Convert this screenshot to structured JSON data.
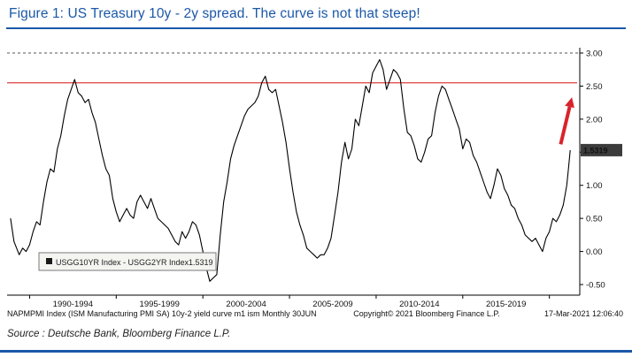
{
  "page": {
    "title": "Figure 1: US Treasury 10y - 2y spread. The curve is not that steep!",
    "source": "Source : Deutsche Bank, Bloomberg Finance L.P.",
    "accent_color": "#1b58a8"
  },
  "chart_data": {
    "type": "line",
    "title": "US Treasury 10y - 2y spread",
    "xlim": [
      1988.7,
      2021.6
    ],
    "ylim": [
      -0.5,
      3.0
    ],
    "y_ticks": [
      3.0,
      2.5,
      2.0,
      1.5,
      1.0,
      0.5,
      0.0,
      -0.5
    ],
    "y_tick_labels": [
      "3.00",
      "2.50",
      "2.00",
      "1.50",
      "1.00",
      "0.50",
      "0.00",
      "-0.50"
    ],
    "x_boundaries": [
      1990,
      1995,
      2000,
      2005,
      2010,
      2015,
      2020
    ],
    "x_groups": [
      {
        "label": "1990-1994",
        "center": 1992.5
      },
      {
        "label": "1995-1999",
        "center": 1997.5
      },
      {
        "label": "2000-2004",
        "center": 2002.5
      },
      {
        "label": "2005-2009",
        "center": 2007.5
      },
      {
        "label": "2010-2014",
        "center": 2012.5
      },
      {
        "label": "2015-2019",
        "center": 2017.5
      }
    ],
    "grid": "top-dashed-only",
    "legend_position": "bottom-left-inside",
    "legend": {
      "marker_color": "#1a1a1a",
      "label": "USGG10YR Index - USGG2YR Index",
      "value": "1.5319"
    },
    "threshold_line": {
      "value": 2.55,
      "color": "#e05252"
    },
    "top_gridline": {
      "value": 3.0,
      "style": "dashed",
      "color": "#555555"
    },
    "arrow_annotation": {
      "from": [
        2020.65,
        1.62
      ],
      "to": [
        2021.3,
        2.33
      ],
      "color": "#d9232a"
    },
    "last_value": 1.5319,
    "last_value_label": "1.5319",
    "badge_color": "#3c3c3c",
    "series": [
      {
        "name": "USGG10YR Index - USGG2YR Index",
        "color": "#000000",
        "points": [
          [
            1988.9,
            0.5
          ],
          [
            1989.1,
            0.15
          ],
          [
            1989.4,
            -0.05
          ],
          [
            1989.6,
            0.05
          ],
          [
            1989.8,
            0.0
          ],
          [
            1990.0,
            0.1
          ],
          [
            1990.2,
            0.3
          ],
          [
            1990.4,
            0.45
          ],
          [
            1990.6,
            0.4
          ],
          [
            1990.8,
            0.75
          ],
          [
            1991.0,
            1.05
          ],
          [
            1991.2,
            1.25
          ],
          [
            1991.4,
            1.2
          ],
          [
            1991.6,
            1.55
          ],
          [
            1991.8,
            1.75
          ],
          [
            1992.0,
            2.05
          ],
          [
            1992.2,
            2.3
          ],
          [
            1992.4,
            2.45
          ],
          [
            1992.6,
            2.6
          ],
          [
            1992.8,
            2.4
          ],
          [
            1993.0,
            2.35
          ],
          [
            1993.2,
            2.25
          ],
          [
            1993.4,
            2.3
          ],
          [
            1993.6,
            2.1
          ],
          [
            1993.8,
            1.95
          ],
          [
            1994.0,
            1.7
          ],
          [
            1994.2,
            1.45
          ],
          [
            1994.4,
            1.25
          ],
          [
            1994.6,
            1.15
          ],
          [
            1994.8,
            0.8
          ],
          [
            1995.0,
            0.6
          ],
          [
            1995.2,
            0.45
          ],
          [
            1995.4,
            0.55
          ],
          [
            1995.6,
            0.65
          ],
          [
            1995.8,
            0.55
          ],
          [
            1996.0,
            0.5
          ],
          [
            1996.2,
            0.75
          ],
          [
            1996.4,
            0.85
          ],
          [
            1996.6,
            0.75
          ],
          [
            1996.8,
            0.65
          ],
          [
            1997.0,
            0.8
          ],
          [
            1997.2,
            0.65
          ],
          [
            1997.4,
            0.5
          ],
          [
            1997.6,
            0.45
          ],
          [
            1997.8,
            0.4
          ],
          [
            1998.0,
            0.35
          ],
          [
            1998.2,
            0.25
          ],
          [
            1998.4,
            0.15
          ],
          [
            1998.6,
            0.1
          ],
          [
            1998.8,
            0.3
          ],
          [
            1999.0,
            0.2
          ],
          [
            1999.2,
            0.3
          ],
          [
            1999.4,
            0.45
          ],
          [
            1999.6,
            0.4
          ],
          [
            1999.8,
            0.25
          ],
          [
            2000.0,
            0.0
          ],
          [
            2000.2,
            -0.25
          ],
          [
            2000.4,
            -0.45
          ],
          [
            2000.6,
            -0.4
          ],
          [
            2000.8,
            -0.35
          ],
          [
            2001.0,
            0.25
          ],
          [
            2001.2,
            0.75
          ],
          [
            2001.4,
            1.05
          ],
          [
            2001.6,
            1.4
          ],
          [
            2001.8,
            1.6
          ],
          [
            2002.0,
            1.75
          ],
          [
            2002.2,
            1.9
          ],
          [
            2002.4,
            2.05
          ],
          [
            2002.6,
            2.15
          ],
          [
            2002.8,
            2.2
          ],
          [
            2003.0,
            2.25
          ],
          [
            2003.2,
            2.35
          ],
          [
            2003.4,
            2.55
          ],
          [
            2003.6,
            2.65
          ],
          [
            2003.8,
            2.45
          ],
          [
            2004.0,
            2.4
          ],
          [
            2004.2,
            2.45
          ],
          [
            2004.4,
            2.2
          ],
          [
            2004.6,
            1.95
          ],
          [
            2004.8,
            1.65
          ],
          [
            2005.0,
            1.25
          ],
          [
            2005.2,
            0.9
          ],
          [
            2005.4,
            0.6
          ],
          [
            2005.6,
            0.4
          ],
          [
            2005.8,
            0.25
          ],
          [
            2006.0,
            0.05
          ],
          [
            2006.2,
            0.0
          ],
          [
            2006.4,
            -0.05
          ],
          [
            2006.6,
            -0.1
          ],
          [
            2006.8,
            -0.05
          ],
          [
            2007.0,
            -0.05
          ],
          [
            2007.2,
            0.05
          ],
          [
            2007.4,
            0.2
          ],
          [
            2007.6,
            0.55
          ],
          [
            2007.8,
            0.9
          ],
          [
            2008.0,
            1.35
          ],
          [
            2008.2,
            1.65
          ],
          [
            2008.4,
            1.4
          ],
          [
            2008.6,
            1.55
          ],
          [
            2008.8,
            2.0
          ],
          [
            2009.0,
            1.9
          ],
          [
            2009.2,
            2.2
          ],
          [
            2009.4,
            2.5
          ],
          [
            2009.6,
            2.4
          ],
          [
            2009.8,
            2.7
          ],
          [
            2010.0,
            2.8
          ],
          [
            2010.2,
            2.9
          ],
          [
            2010.4,
            2.75
          ],
          [
            2010.6,
            2.45
          ],
          [
            2010.8,
            2.6
          ],
          [
            2011.0,
            2.75
          ],
          [
            2011.2,
            2.7
          ],
          [
            2011.4,
            2.6
          ],
          [
            2011.6,
            2.15
          ],
          [
            2011.8,
            1.8
          ],
          [
            2012.0,
            1.75
          ],
          [
            2012.2,
            1.6
          ],
          [
            2012.4,
            1.4
          ],
          [
            2012.6,
            1.35
          ],
          [
            2012.8,
            1.5
          ],
          [
            2013.0,
            1.7
          ],
          [
            2013.2,
            1.75
          ],
          [
            2013.4,
            2.1
          ],
          [
            2013.6,
            2.35
          ],
          [
            2013.8,
            2.5
          ],
          [
            2014.0,
            2.45
          ],
          [
            2014.2,
            2.3
          ],
          [
            2014.4,
            2.15
          ],
          [
            2014.6,
            2.0
          ],
          [
            2014.8,
            1.85
          ],
          [
            2015.0,
            1.55
          ],
          [
            2015.2,
            1.7
          ],
          [
            2015.4,
            1.65
          ],
          [
            2015.6,
            1.45
          ],
          [
            2015.8,
            1.35
          ],
          [
            2016.0,
            1.2
          ],
          [
            2016.2,
            1.05
          ],
          [
            2016.4,
            0.9
          ],
          [
            2016.6,
            0.8
          ],
          [
            2016.8,
            1.0
          ],
          [
            2017.0,
            1.25
          ],
          [
            2017.2,
            1.15
          ],
          [
            2017.4,
            0.95
          ],
          [
            2017.6,
            0.85
          ],
          [
            2017.8,
            0.7
          ],
          [
            2018.0,
            0.65
          ],
          [
            2018.2,
            0.5
          ],
          [
            2018.4,
            0.4
          ],
          [
            2018.6,
            0.25
          ],
          [
            2018.8,
            0.2
          ],
          [
            2019.0,
            0.15
          ],
          [
            2019.2,
            0.2
          ],
          [
            2019.4,
            0.1
          ],
          [
            2019.6,
            0.0
          ],
          [
            2019.8,
            0.2
          ],
          [
            2020.0,
            0.3
          ],
          [
            2020.2,
            0.5
          ],
          [
            2020.4,
            0.45
          ],
          [
            2020.6,
            0.55
          ],
          [
            2020.8,
            0.7
          ],
          [
            2021.0,
            1.0
          ],
          [
            2021.1,
            1.25
          ],
          [
            2021.2,
            1.5319
          ]
        ]
      }
    ],
    "footer": {
      "left": "NAPMPMI Index (ISM Manufacturing PMI SA) 10y-2 yield curve m1 ism Monthly 30JUN",
      "center": "Copyright© 2021 Bloomberg Finance L.P.",
      "right": "17-Mar-2021 12:06:40"
    }
  }
}
